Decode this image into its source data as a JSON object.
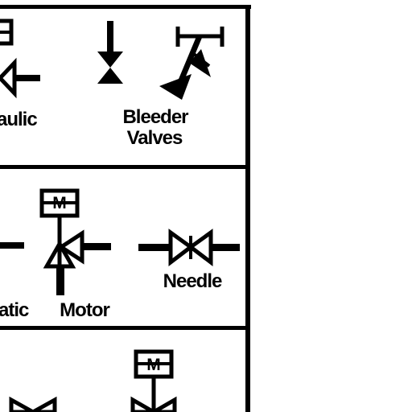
{
  "labels": {
    "hydraulic_partial": "aulic",
    "bleeder_line1": "Bleeder",
    "bleeder_line2": "Valves",
    "pneumatic_partial": "atic",
    "motor": "Motor",
    "needle": "Needle"
  },
  "icon_text": {
    "motor_box_top": "M",
    "motor_box_bottom": "M"
  },
  "colors": {
    "ink": "#000000",
    "background": "#ffffff"
  }
}
